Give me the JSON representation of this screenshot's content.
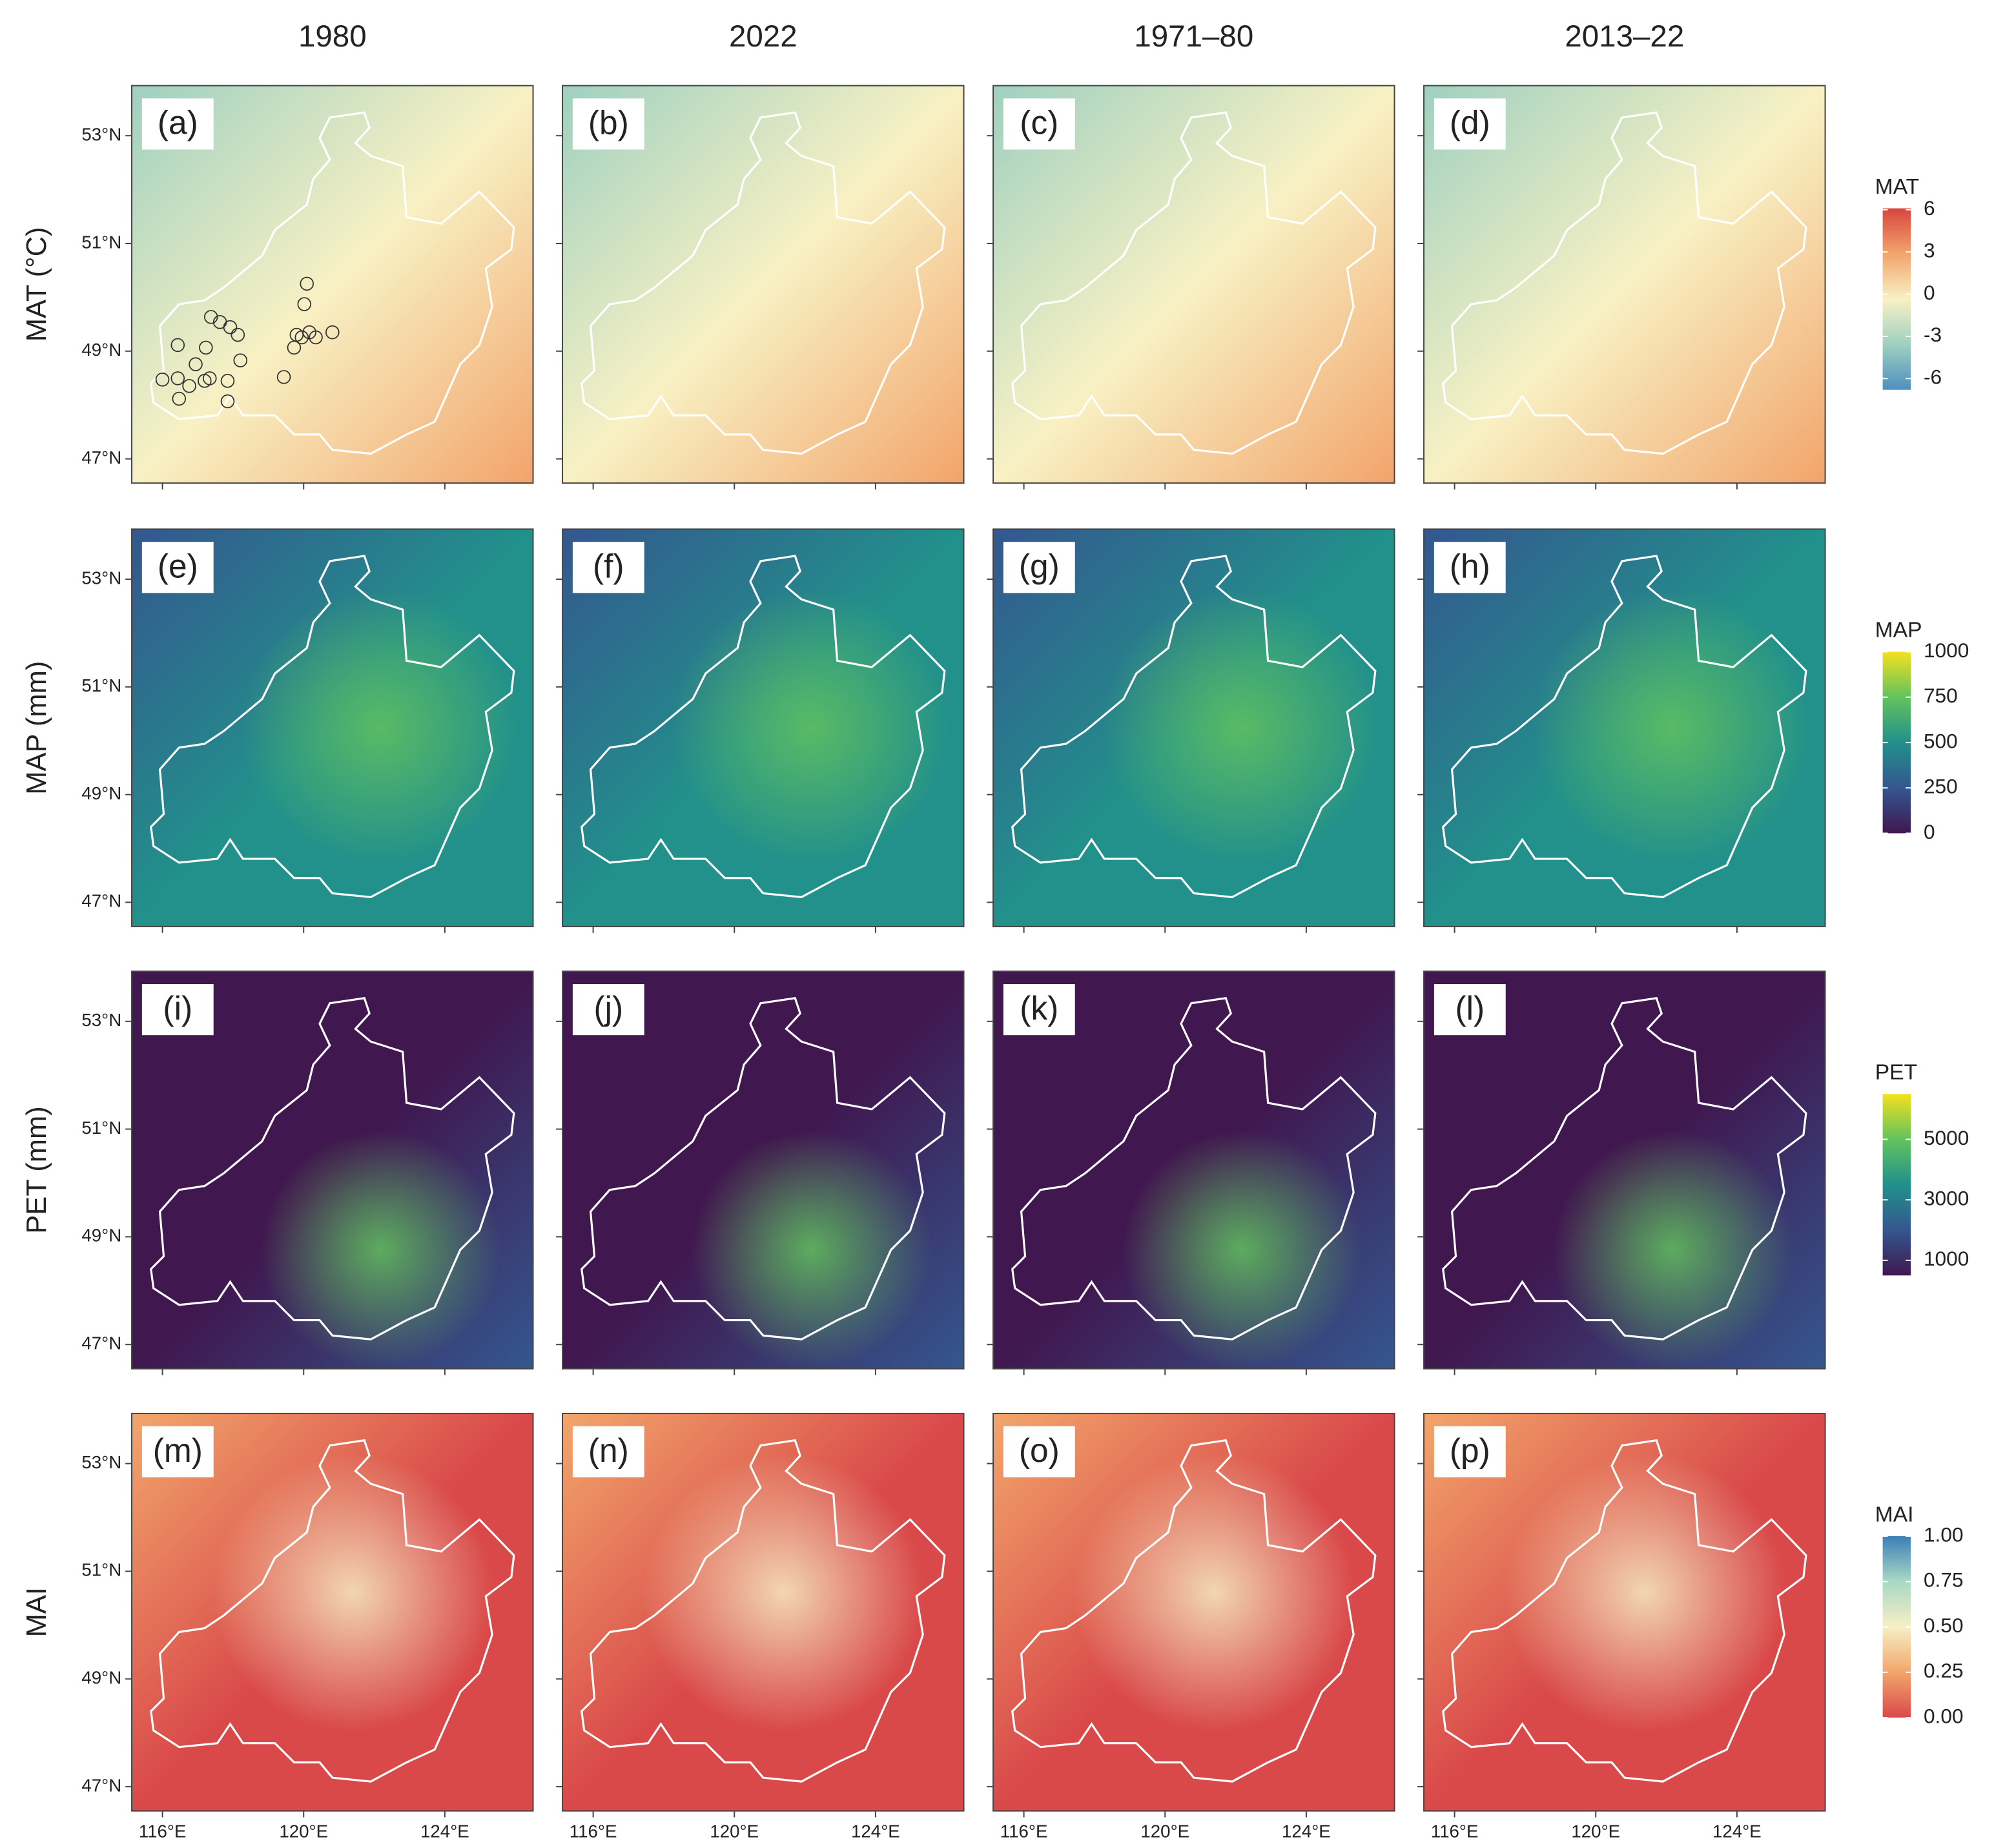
{
  "columns": [
    "1980",
    "2022",
    "1971–80",
    "2013–22"
  ],
  "rows": [
    {
      "label": "MAT (°C)",
      "panels": [
        "(a)",
        "(b)",
        "(c)",
        "(d)"
      ],
      "legend": {
        "title": "MAT",
        "lim": [
          -6.8,
          6.1
        ],
        "ticks": [
          6,
          3,
          0,
          -3,
          -6
        ],
        "colors": [
          "#4e8fbf",
          "#9fd0c0",
          "#f8f1c4",
          "#f2a46b",
          "#d7453f"
        ]
      }
    },
    {
      "label": "MAP (mm)",
      "panels": [
        "(e)",
        "(f)",
        "(g)",
        "(h)"
      ],
      "legend": {
        "title": "MAP",
        "lim": [
          0,
          1000
        ],
        "ticks": [
          1000,
          750,
          500,
          250,
          0
        ],
        "colors": [
          "#40174f",
          "#34578f",
          "#22908b",
          "#63c25e",
          "#f4e11e"
        ]
      }
    },
    {
      "label": "PET (mm)",
      "panels": [
        "(i)",
        "(j)",
        "(k)",
        "(l)"
      ],
      "legend": {
        "title": "PET",
        "lim": [
          500,
          6500
        ],
        "ticks": [
          5000,
          3000,
          1000
        ],
        "colors": [
          "#40174f",
          "#34578f",
          "#22908b",
          "#63c25e",
          "#f4e11e"
        ]
      }
    },
    {
      "label": "MAI",
      "panels": [
        "(m)",
        "(n)",
        "(o)",
        "(p)"
      ],
      "legend": {
        "title": "MAI",
        "lim": [
          0,
          1
        ],
        "ticks": [
          {
            "value": 1,
            "label": "1.00"
          },
          {
            "value": 0.75,
            "label": "0.75"
          },
          {
            "value": 0.5,
            "label": "0.50"
          },
          {
            "value": 0.25,
            "label": "0.25"
          },
          {
            "value": 0,
            "label": "0.00"
          }
        ],
        "colors": [
          "#d9494a",
          "#f2a66b",
          "#f6efc6",
          "#a9d8c4",
          "#3b7fb7"
        ]
      }
    }
  ],
  "latitude": {
    "lim": [
      46.55,
      53.93
    ],
    "ticks": [
      {
        "value": 47,
        "label": "47°N"
      },
      {
        "value": 49,
        "label": "49°N"
      },
      {
        "value": 51,
        "label": "51°N"
      },
      {
        "value": 53,
        "label": "53°N"
      }
    ]
  },
  "longitude": {
    "lim": [
      115.13,
      126.5
    ],
    "ticks": [
      {
        "value": 116,
        "label": "116°E"
      },
      {
        "value": 120,
        "label": "120°E"
      },
      {
        "value": 124,
        "label": "124°E"
      }
    ]
  }
}
